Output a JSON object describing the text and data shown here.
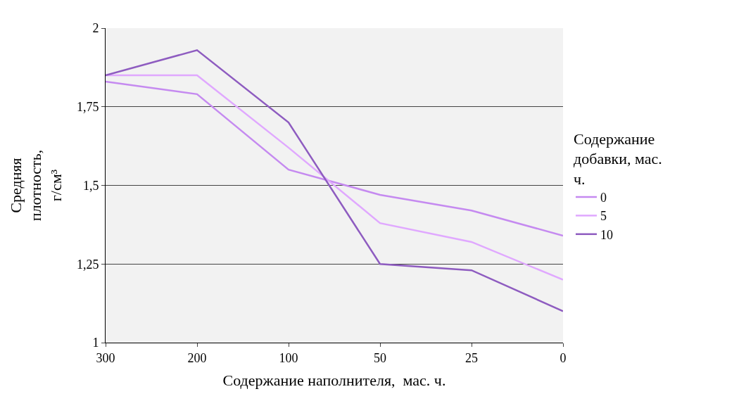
{
  "chart_data": {
    "type": "line",
    "xlabel": "Содержание наполнителя,  мас. ч.",
    "ylabel": "Средняя плотность, г/см³",
    "legend_title": "Содержание добавки, мас. ч.",
    "categories": [
      "300",
      "200",
      "100",
      "50",
      "25",
      "0"
    ],
    "series": [
      {
        "name": "0",
        "color": "#c58af0",
        "values": [
          1.83,
          1.79,
          1.55,
          1.47,
          1.42,
          1.34
        ]
      },
      {
        "name": "5",
        "color": "#e0a8ff",
        "values": [
          1.85,
          1.85,
          1.62,
          1.38,
          1.32,
          1.2
        ]
      },
      {
        "name": "10",
        "color": "#8e5cc0",
        "values": [
          1.85,
          1.93,
          1.7,
          1.25,
          1.23,
          1.1
        ]
      }
    ],
    "ylim": [
      1,
      2
    ],
    "yticks": [
      1,
      {
        "value": 1.25,
        "label": "1,25"
      },
      {
        "value": 1.5,
        "label": "1,5"
      },
      {
        "value": 1.75,
        "label": "1,75"
      },
      2
    ],
    "grid": "y",
    "legend": "right",
    "marker": "none",
    "line_style": "solid"
  }
}
